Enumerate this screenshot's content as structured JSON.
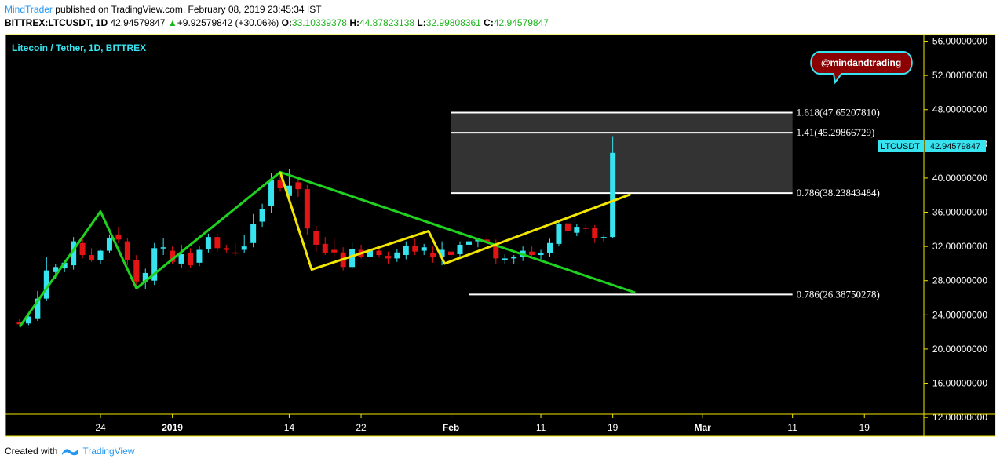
{
  "header": {
    "author": "MindTrader",
    "published": "published on TradingView.com, February 08, 2019 23:45:34 IST",
    "symbol": "BITTREX:LTCUSDT, 1D",
    "last": "42.94579847",
    "arrow": "▲",
    "change": "+9.92579842 (+30.06%)",
    "o_label": "O:",
    "o_value": "33.10339378",
    "h_label": "H:",
    "h_value": "44.87823138",
    "l_label": "L:",
    "l_value": "32.99808361",
    "c_label": "C:",
    "c_value": "42.94579847"
  },
  "footer": {
    "created_with": "Created with",
    "brand": "TradingView"
  },
  "colors": {
    "background": "#000000",
    "frame": "#f2e600",
    "up": "#36e3ef",
    "down": "#e31414",
    "green_line": "#1fd21f",
    "yellow_line": "#f2e600",
    "fib_fill": "#333333",
    "axis_text": "#ffffff",
    "title_text": "#36e3ef",
    "price_tag": "#36e3ef",
    "balloon": "#8b0000"
  },
  "chart_data": {
    "type": "candlestick",
    "title": "Litecoin / Tether, 1D, BITTREX",
    "ylim": [
      11,
      56.6
    ],
    "y_ticks": [
      "56.00000000",
      "52.00000000",
      "48.00000000",
      "44.00000000",
      "40.00000000",
      "36.00000000",
      "32.00000000",
      "28.00000000",
      "24.00000000",
      "20.00000000",
      "16.00000000",
      "12.00000000"
    ],
    "x_labels": [
      {
        "day": 7,
        "label": "24"
      },
      {
        "day": 15,
        "label": "2019"
      },
      {
        "day": 28,
        "label": "14"
      },
      {
        "day": 36,
        "label": "22"
      },
      {
        "day": 46,
        "label": "Feb"
      },
      {
        "day": 56,
        "label": "11"
      },
      {
        "day": 64,
        "label": "19"
      },
      {
        "day": 74,
        "label": "Mar"
      },
      {
        "day": 84,
        "label": "11"
      },
      {
        "day": 92,
        "label": "19"
      }
    ],
    "candles": [
      {
        "d": -2,
        "o": 23.2,
        "h": 23.6,
        "l": 22.6,
        "c": 22.9
      },
      {
        "d": -1,
        "o": 23.0,
        "h": 24.1,
        "l": 22.8,
        "c": 23.8
      },
      {
        "d": 0,
        "o": 23.6,
        "h": 26.8,
        "l": 23.3,
        "c": 25.9
      },
      {
        "d": 1,
        "o": 25.9,
        "h": 30.8,
        "l": 25.6,
        "c": 29.2
      },
      {
        "d": 2,
        "o": 29.0,
        "h": 29.9,
        "l": 28.2,
        "c": 29.6
      },
      {
        "d": 3,
        "o": 29.5,
        "h": 30.4,
        "l": 29.0,
        "c": 30.1
      },
      {
        "d": 4,
        "o": 29.8,
        "h": 33.1,
        "l": 29.3,
        "c": 32.6
      },
      {
        "d": 5,
        "o": 32.4,
        "h": 33.0,
        "l": 30.6,
        "c": 31.0
      },
      {
        "d": 6,
        "o": 31.0,
        "h": 31.8,
        "l": 30.2,
        "c": 30.4
      },
      {
        "d": 7,
        "o": 30.4,
        "h": 31.6,
        "l": 30.0,
        "c": 31.5
      },
      {
        "d": 8,
        "o": 31.5,
        "h": 33.4,
        "l": 31.2,
        "c": 33.0
      },
      {
        "d": 9,
        "o": 33.4,
        "h": 34.3,
        "l": 32.4,
        "c": 32.8
      },
      {
        "d": 10,
        "o": 32.6,
        "h": 33.0,
        "l": 29.8,
        "c": 30.4
      },
      {
        "d": 11,
        "o": 30.4,
        "h": 31.0,
        "l": 27.3,
        "c": 27.9
      },
      {
        "d": 12,
        "o": 27.9,
        "h": 29.4,
        "l": 27.0,
        "c": 28.9
      },
      {
        "d": 13,
        "o": 28.0,
        "h": 32.4,
        "l": 27.5,
        "c": 31.8
      },
      {
        "d": 14,
        "o": 31.8,
        "h": 33.0,
        "l": 31.0,
        "c": 31.9
      },
      {
        "d": 15,
        "o": 31.5,
        "h": 32.0,
        "l": 29.9,
        "c": 30.2
      },
      {
        "d": 16,
        "o": 30.0,
        "h": 32.2,
        "l": 29.5,
        "c": 31.1
      },
      {
        "d": 17,
        "o": 31.2,
        "h": 31.8,
        "l": 29.5,
        "c": 29.8
      },
      {
        "d": 18,
        "o": 30.1,
        "h": 32.0,
        "l": 29.7,
        "c": 31.6
      },
      {
        "d": 19,
        "o": 31.7,
        "h": 33.5,
        "l": 31.3,
        "c": 33.1
      },
      {
        "d": 20,
        "o": 33.1,
        "h": 33.5,
        "l": 31.4,
        "c": 31.8
      },
      {
        "d": 21,
        "o": 31.8,
        "h": 32.2,
        "l": 31.3,
        "c": 31.6
      },
      {
        "d": 22,
        "o": 31.3,
        "h": 32.4,
        "l": 30.9,
        "c": 31.2
      },
      {
        "d": 23,
        "o": 31.6,
        "h": 33.3,
        "l": 31.2,
        "c": 32.0
      },
      {
        "d": 24,
        "o": 32.4,
        "h": 35.8,
        "l": 31.9,
        "c": 34.6
      },
      {
        "d": 25,
        "o": 34.9,
        "h": 37.0,
        "l": 34.3,
        "c": 36.4
      },
      {
        "d": 26,
        "o": 36.7,
        "h": 40.6,
        "l": 35.9,
        "c": 39.8
      },
      {
        "d": 27,
        "o": 39.8,
        "h": 40.3,
        "l": 38.4,
        "c": 38.8
      },
      {
        "d": 28,
        "o": 37.9,
        "h": 41.0,
        "l": 37.3,
        "c": 39.1
      },
      {
        "d": 29,
        "o": 39.5,
        "h": 40.0,
        "l": 37.8,
        "c": 38.7
      },
      {
        "d": 30,
        "o": 38.7,
        "h": 39.2,
        "l": 33.3,
        "c": 34.1
      },
      {
        "d": 31,
        "o": 33.8,
        "h": 34.4,
        "l": 31.4,
        "c": 32.2
      },
      {
        "d": 32,
        "o": 32.3,
        "h": 33.1,
        "l": 31.0,
        "c": 31.2
      },
      {
        "d": 33,
        "o": 31.6,
        "h": 33.0,
        "l": 30.8,
        "c": 31.3
      },
      {
        "d": 34,
        "o": 31.3,
        "h": 31.9,
        "l": 29.2,
        "c": 29.6
      },
      {
        "d": 35,
        "o": 29.6,
        "h": 32.5,
        "l": 29.3,
        "c": 31.7
      },
      {
        "d": 36,
        "o": 31.6,
        "h": 32.2,
        "l": 30.6,
        "c": 30.8
      },
      {
        "d": 37,
        "o": 30.8,
        "h": 31.8,
        "l": 30.3,
        "c": 31.5
      },
      {
        "d": 38,
        "o": 31.5,
        "h": 31.9,
        "l": 30.7,
        "c": 31.0
      },
      {
        "d": 39,
        "o": 30.9,
        "h": 31.4,
        "l": 29.9,
        "c": 30.6
      },
      {
        "d": 40,
        "o": 30.6,
        "h": 31.7,
        "l": 30.2,
        "c": 31.3
      },
      {
        "d": 41,
        "o": 31.0,
        "h": 32.6,
        "l": 30.5,
        "c": 32.1
      },
      {
        "d": 42,
        "o": 32.1,
        "h": 32.9,
        "l": 31.0,
        "c": 31.4
      },
      {
        "d": 43,
        "o": 31.5,
        "h": 32.3,
        "l": 31.0,
        "c": 31.9
      },
      {
        "d": 44,
        "o": 31.2,
        "h": 32.0,
        "l": 30.1,
        "c": 30.8
      },
      {
        "d": 45,
        "o": 30.8,
        "h": 32.6,
        "l": 29.8,
        "c": 31.6
      },
      {
        "d": 46,
        "o": 31.4,
        "h": 32.0,
        "l": 30.4,
        "c": 31.0
      },
      {
        "d": 47,
        "o": 31.1,
        "h": 32.6,
        "l": 30.7,
        "c": 32.2
      },
      {
        "d": 48,
        "o": 32.2,
        "h": 33.0,
        "l": 31.7,
        "c": 32.6
      },
      {
        "d": 49,
        "o": 32.6,
        "h": 33.0,
        "l": 31.9,
        "c": 32.8
      },
      {
        "d": 50,
        "o": 32.8,
        "h": 33.4,
        "l": 32.3,
        "c": 32.5
      },
      {
        "d": 51,
        "o": 32.2,
        "h": 32.8,
        "l": 29.9,
        "c": 30.6
      },
      {
        "d": 52,
        "o": 30.4,
        "h": 31.1,
        "l": 29.9,
        "c": 30.6
      },
      {
        "d": 53,
        "o": 30.6,
        "h": 31.0,
        "l": 30.0,
        "c": 30.8
      },
      {
        "d": 54,
        "o": 30.8,
        "h": 32.0,
        "l": 30.3,
        "c": 31.5
      },
      {
        "d": 55,
        "o": 31.4,
        "h": 32.0,
        "l": 30.8,
        "c": 31.0
      },
      {
        "d": 56,
        "o": 31.0,
        "h": 31.6,
        "l": 30.5,
        "c": 31.2
      },
      {
        "d": 57,
        "o": 31.2,
        "h": 32.9,
        "l": 30.8,
        "c": 32.4
      },
      {
        "d": 58,
        "o": 32.3,
        "h": 35.0,
        "l": 32.0,
        "c": 34.6
      },
      {
        "d": 59,
        "o": 34.7,
        "h": 35.0,
        "l": 33.3,
        "c": 33.8
      },
      {
        "d": 60,
        "o": 33.6,
        "h": 34.6,
        "l": 33.2,
        "c": 34.3
      },
      {
        "d": 61,
        "o": 34.2,
        "h": 34.7,
        "l": 33.5,
        "c": 34.1
      },
      {
        "d": 62,
        "o": 34.2,
        "h": 34.5,
        "l": 32.4,
        "c": 33.0
      },
      {
        "d": 63,
        "o": 33.0,
        "h": 33.4,
        "l": 32.6,
        "c": 33.1
      },
      {
        "d": 64,
        "o": 33.1,
        "h": 44.9,
        "l": 33.0,
        "c": 42.95
      }
    ],
    "fib_levels": [
      {
        "label": "1.618(47.65207810)",
        "value": 47.6520781,
        "d_from": 46,
        "d_to": 84
      },
      {
        "label": "1.41(45.29866729)",
        "value": 45.29866729,
        "d_from": 46,
        "d_to": 84
      },
      {
        "label": "0.786(38.23843484)",
        "value": 38.23843484,
        "d_from": 46,
        "d_to": 84
      },
      {
        "label": "0.786(26.38750278)",
        "value": 26.38750278,
        "d_from": 48,
        "d_to": 84
      }
    ],
    "green_lines": [
      [
        {
          "d": -2,
          "v": 22.6
        },
        {
          "d": 7,
          "v": 36.1
        },
        {
          "d": 11,
          "v": 27.1
        },
        {
          "d": 27,
          "v": 40.7
        },
        {
          "d": 66.5,
          "v": 26.6
        }
      ]
    ],
    "yellow_lines": [
      [
        {
          "d": 27,
          "v": 40.7
        },
        {
          "d": 30.5,
          "v": 29.3
        },
        {
          "d": 43.5,
          "v": 33.8
        },
        {
          "d": 45.3,
          "v": 30.0
        },
        {
          "d": 66,
          "v": 38.1
        }
      ]
    ],
    "price_tag": {
      "symbol": "LTCUSDT",
      "value": "42.94579847"
    },
    "annotation": "@mindandtrading"
  }
}
